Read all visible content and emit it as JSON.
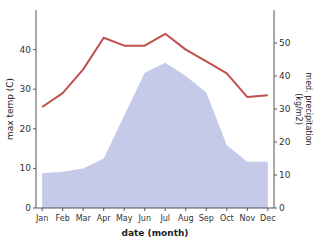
{
  "chart_data": {
    "type": "line",
    "categories": [
      "Jan",
      "Feb",
      "Mar",
      "Apr",
      "May",
      "Jun",
      "Jul",
      "Aug",
      "Sep",
      "Oct",
      "Nov",
      "Dec"
    ],
    "series": [
      {
        "type": "area",
        "axis": "y2",
        "color": "#c5cae9",
        "values": [
          10.5,
          11,
          12,
          15,
          28,
          41,
          44,
          40,
          35,
          19,
          14,
          14
        ]
      },
      {
        "type": "line",
        "color": "#c0504d",
        "values": [
          25.5,
          29,
          35,
          43,
          41,
          41,
          44,
          40,
          37,
          34,
          28,
          28.5
        ]
      }
    ],
    "ylim": [
      0,
      50
    ],
    "yticks": [
      0,
      10,
      20,
      30,
      40
    ],
    "y2lim": [
      0,
      60
    ],
    "y2ticks": [
      0,
      10,
      20,
      30,
      40,
      50
    ],
    "xlabel": "date (month)",
    "ylabel": "max temp (C)",
    "y2label": "med. precipitation\n(kg/m2)"
  }
}
